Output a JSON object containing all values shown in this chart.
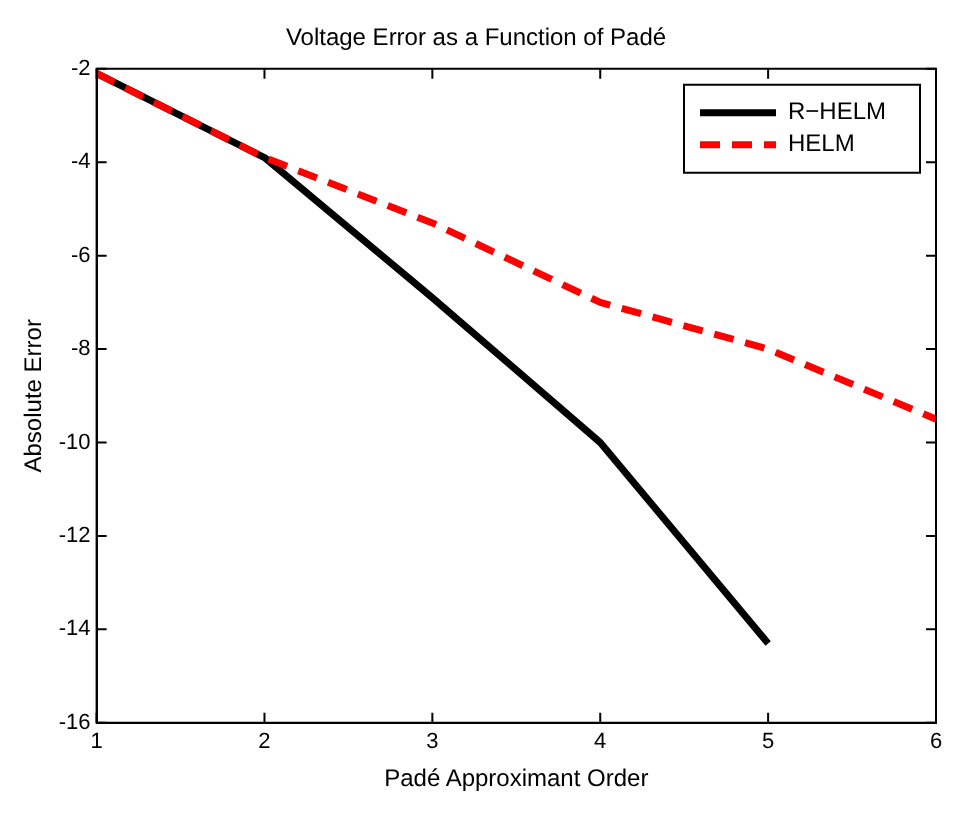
{
  "chart_data": {
    "type": "line",
    "title": "Voltage Error as a Function of Padé",
    "xlabel": "Padé Approximant Order",
    "ylabel": "Absolute Error",
    "x": [
      1,
      2,
      3,
      4,
      5,
      6
    ],
    "series": [
      {
        "name": "R−HELM",
        "color": "#000000",
        "line_style": "solid",
        "values": [
          -2.1,
          -3.9,
          -6.9,
          -10,
          -14.3,
          null
        ]
      },
      {
        "name": "HELM",
        "color": "#ff0000",
        "line_style": "dashed",
        "values": [
          -2.1,
          -3.9,
          -5.3,
          -7,
          -8,
          -9.5
        ]
      }
    ],
    "xlim": [
      1,
      6
    ],
    "xticks": [
      1,
      2,
      3,
      4,
      5,
      6
    ],
    "ylim": [
      -16,
      -2
    ],
    "yticks": [
      -16,
      -14,
      -12,
      -10,
      -8,
      -6,
      -4,
      -2
    ],
    "grid": false,
    "legend": "top right",
    "marker": "none"
  }
}
